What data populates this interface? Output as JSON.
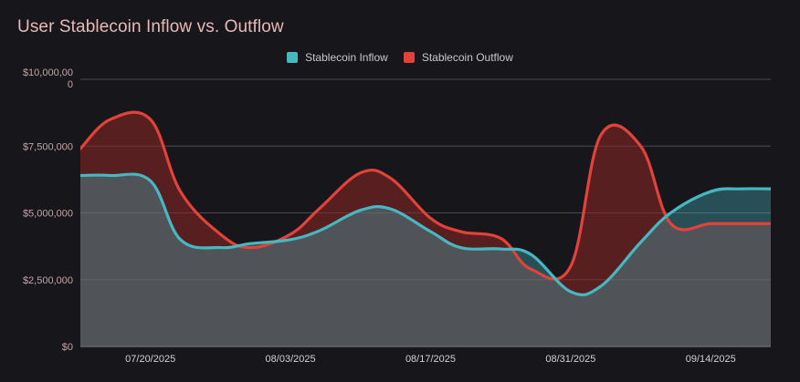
{
  "chart_data": {
    "type": "area",
    "title": "User Stablecoin Inflow vs. Outflow",
    "xlabel": "",
    "ylabel": "",
    "ylim": [
      0,
      10000000
    ],
    "y_ticks": [
      {
        "value": 0,
        "label": "$0"
      },
      {
        "value": 2500000,
        "label": "$2,500,000"
      },
      {
        "value": 5000000,
        "label": "$5,000,000"
      },
      {
        "value": 7500000,
        "label": "$7,500,000"
      },
      {
        "value": 10000000,
        "label_line1": "$10,000,00",
        "label_line2": "0"
      }
    ],
    "x": [
      "07/13/2025",
      "07/16/2025",
      "07/20/2025",
      "07/23/2025",
      "07/27/2025",
      "07/30/2025",
      "08/03/2025",
      "08/06/2025",
      "08/10/2025",
      "08/13/2025",
      "08/17/2025",
      "08/20/2025",
      "08/24/2025",
      "08/27/2025",
      "08/31/2025",
      "09/03/2025",
      "09/07/2025",
      "09/10/2025",
      "09/14/2025",
      "09/17/2025",
      "09/20/2025"
    ],
    "x_tick_labels": [
      "07/20/2025",
      "08/03/2025",
      "08/17/2025",
      "08/31/2025",
      "09/14/2025"
    ],
    "legend_position": "top-center",
    "grid": true,
    "series": [
      {
        "name": "Stablecoin Inflow",
        "color": "#45b8c2",
        "values": [
          6400000,
          6400000,
          6200000,
          4000000,
          3700000,
          3850000,
          4000000,
          4350000,
          5100000,
          5150000,
          4300000,
          3700000,
          3650000,
          3450000,
          2050000,
          2250000,
          3900000,
          5000000,
          5800000,
          5900000,
          5900000
        ]
      },
      {
        "name": "Stablecoin Outflow",
        "color": "#e2423a",
        "values": [
          7400000,
          8500000,
          8500000,
          5800000,
          4200000,
          3700000,
          4200000,
          5200000,
          6500000,
          6300000,
          4800000,
          4300000,
          4050000,
          2900000,
          3000000,
          7900000,
          7500000,
          4600000,
          4600000,
          4600000,
          4600000
        ]
      }
    ]
  }
}
